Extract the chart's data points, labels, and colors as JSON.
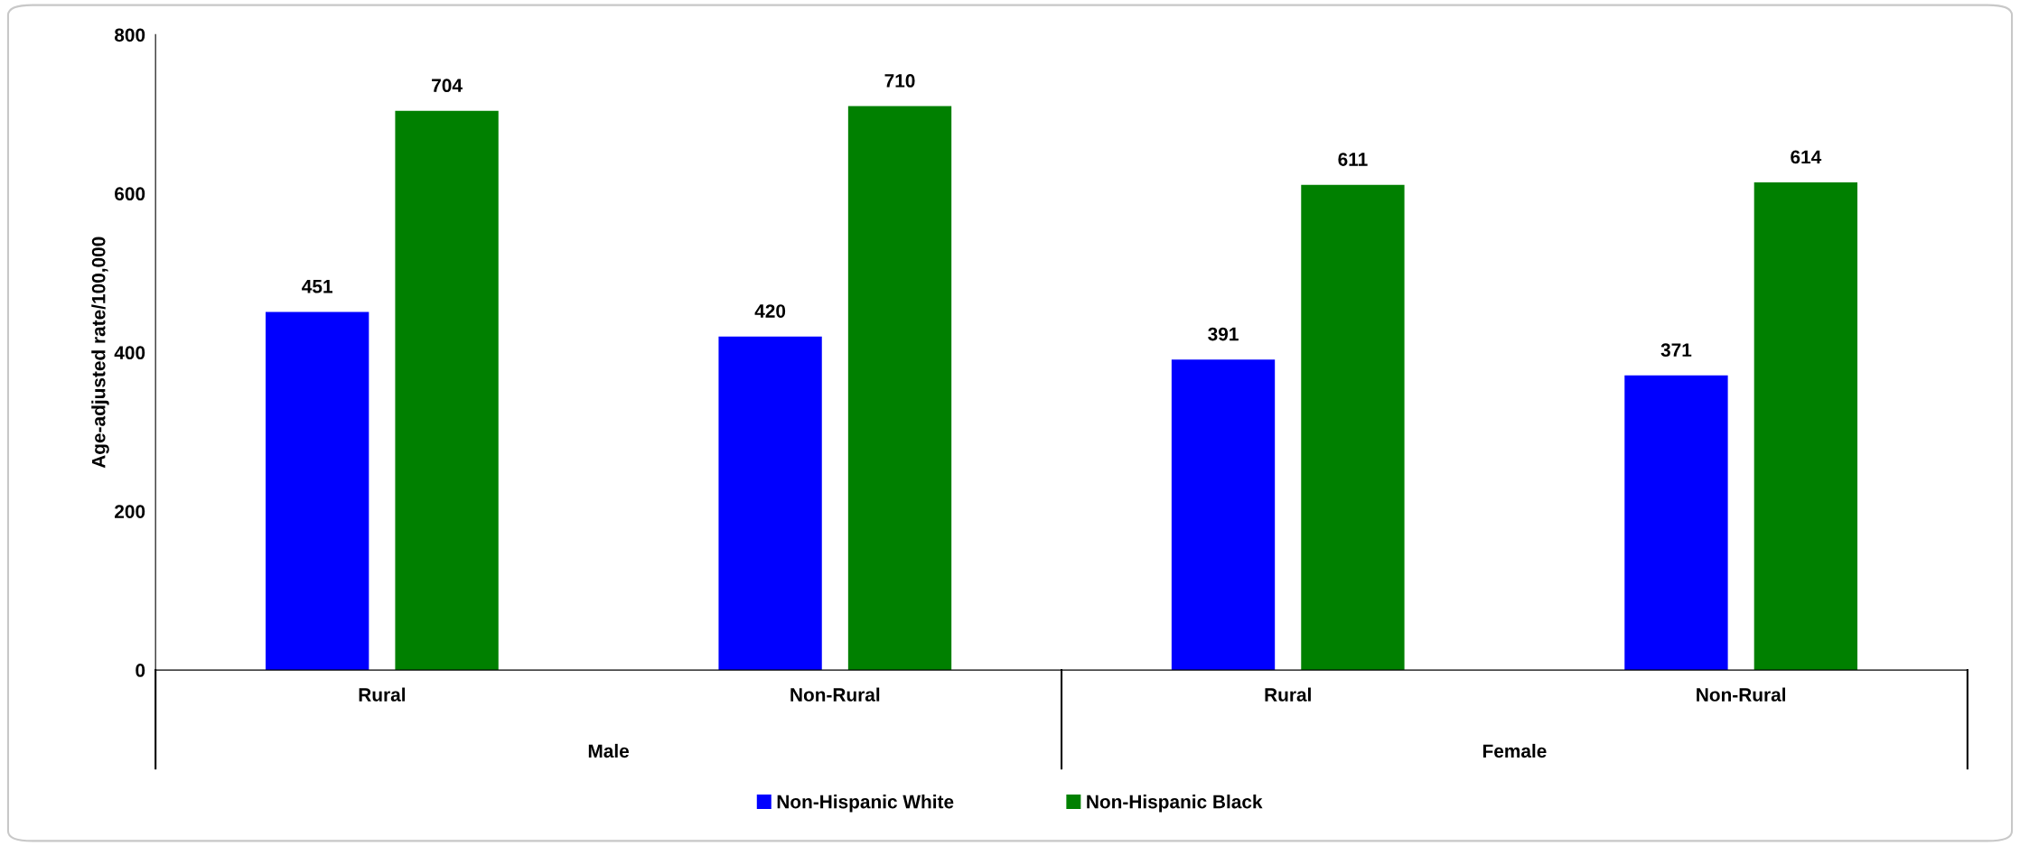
{
  "chart_data": {
    "type": "bar",
    "ylabel": "Age-adjusted rate/100,000",
    "categories": [
      "Rural",
      "Non-Rural",
      "Rural",
      "Non-Rural"
    ],
    "series": [
      {
        "name": "Non-Hispanic White",
        "color": "#0000ff",
        "values": [
          451,
          420,
          391,
          371
        ]
      },
      {
        "name": "Non-Hispanic Black",
        "color": "#008000",
        "values": [
          704,
          710,
          611,
          614
        ]
      }
    ],
    "annotations": [
      "Male",
      "Female"
    ],
    "ylim": [
      0,
      800
    ],
    "yticks": [
      0,
      200,
      400,
      600,
      800
    ],
    "grid": false,
    "legend": "bottom",
    "data_labels": true
  }
}
